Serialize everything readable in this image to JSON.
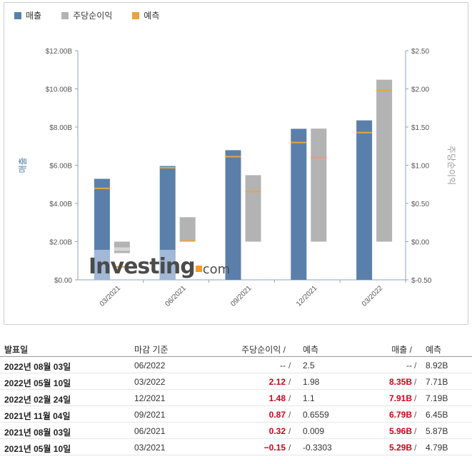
{
  "legend": {
    "revenue_label": "매출",
    "eps_label": "주당순이익",
    "forecast_label": "예측"
  },
  "colors": {
    "revenue": "#5b7fab",
    "revenue_light": "#a8bfdc",
    "eps": "#b3b3b3",
    "eps_light": "#d6d6d6",
    "forecast": "#e8a53a",
    "positive": "#d0021b",
    "axis": "#8ea3c0"
  },
  "chart_data": {
    "type": "bar",
    "categories": [
      "03/2021",
      "06/2021",
      "09/2021",
      "12/2021",
      "03/2022"
    ],
    "series": [
      {
        "name": "매출",
        "axis": "left",
        "values": [
          5.29,
          5.96,
          6.79,
          7.91,
          8.35
        ],
        "forecast": [
          4.79,
          5.87,
          6.45,
          7.19,
          7.71
        ]
      },
      {
        "name": "주당순이익",
        "axis": "right",
        "values": [
          -0.15,
          0.32,
          0.87,
          1.48,
          2.12
        ],
        "forecast": [
          -0.3303,
          0.009,
          0.6559,
          1.1,
          1.98
        ]
      }
    ],
    "ylabel": "매출",
    "y2label": "주당순이익",
    "ylim": [
      0,
      12
    ],
    "y2lim": [
      -0.5,
      2.5
    ],
    "yticks": [
      "$0.00",
      "$2.00B",
      "$4.00B",
      "$6.00B",
      "$8.00B",
      "$10.00B",
      "$12.00B"
    ],
    "y2ticks": [
      "$-0.50",
      "$0.00",
      "$0.50",
      "$1.00",
      "$1.50",
      "$2.00",
      "$2.50"
    ],
    "legend_position": "top-left"
  },
  "watermark": {
    "main": "Investing",
    "suffix": "com"
  },
  "table": {
    "headers": {
      "date": "발표일",
      "period": "마감 기준",
      "eps": "주당순이익 /",
      "eps_forecast": "예측",
      "revenue": "매출 /",
      "revenue_forecast": "예측"
    },
    "rows": [
      {
        "date": "2022년 08월 03일",
        "period": "06/2022",
        "eps": "--",
        "sep1": "/",
        "eps_forecast": "2.5",
        "revenue": "--",
        "sep2": "/",
        "revenue_forecast": "8.92B",
        "highlight": false
      },
      {
        "date": "2022년 05월 10일",
        "period": "03/2022",
        "eps": "2.12",
        "sep1": "/",
        "eps_forecast": "1.98",
        "revenue": "8.35B",
        "sep2": "/",
        "revenue_forecast": "7.71B",
        "highlight": true
      },
      {
        "date": "2022년 02월 24일",
        "period": "12/2021",
        "eps": "1.48",
        "sep1": "/",
        "eps_forecast": "1.1",
        "revenue": "7.91B",
        "sep2": "/",
        "revenue_forecast": "7.19B",
        "highlight": true
      },
      {
        "date": "2021년 11월 04일",
        "period": "09/2021",
        "eps": "0.87",
        "sep1": "/",
        "eps_forecast": "0.6559",
        "revenue": "6.79B",
        "sep2": "/",
        "revenue_forecast": "6.45B",
        "highlight": true
      },
      {
        "date": "2021년 08월 03일",
        "period": "06/2021",
        "eps": "0.32",
        "sep1": "/",
        "eps_forecast": "0.009",
        "revenue": "5.96B",
        "sep2": "/",
        "revenue_forecast": "5.87B",
        "highlight": true
      },
      {
        "date": "2021년 05월 10일",
        "period": "03/2021",
        "eps": "−0.15",
        "sep1": "/",
        "eps_forecast": "-0.3303",
        "revenue": "5.29B",
        "sep2": "/",
        "revenue_forecast": "4.79B",
        "highlight": true
      }
    ]
  }
}
